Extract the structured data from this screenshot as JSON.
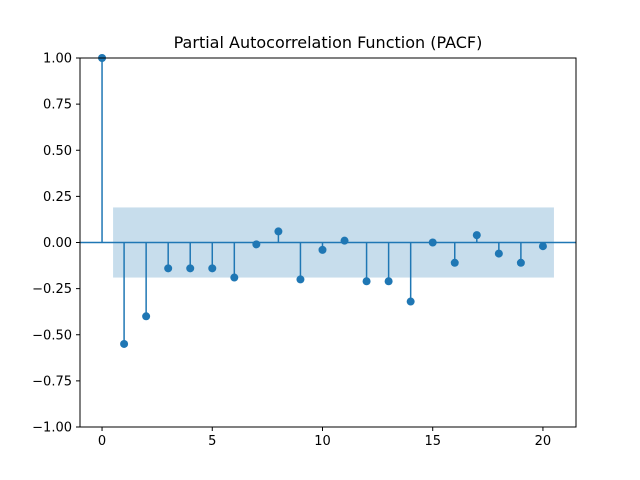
{
  "chart_data": {
    "type": "stem",
    "title": "Partial Autocorrelation Function (PACF)",
    "xlabel": "",
    "ylabel": "",
    "xlim": [
      -1,
      21.5
    ],
    "ylim": [
      -1.0,
      1.0
    ],
    "x_ticks": [
      "0",
      "5",
      "10",
      "15",
      "20"
    ],
    "y_ticks": [
      "−1.00",
      "−0.75",
      "−0.50",
      "−0.25",
      "0.00",
      "0.25",
      "0.50",
      "0.75",
      "1.00"
    ],
    "confidence_band": {
      "lower": -0.19,
      "upper": 0.19,
      "x_start": 0.5,
      "x_end": 20.5
    },
    "series": [
      {
        "lags": [
          0,
          1,
          2,
          3,
          4,
          5,
          6,
          7,
          8,
          9,
          10,
          11,
          12,
          13,
          14,
          15,
          16,
          17,
          18,
          19,
          20
        ],
        "values": [
          1.0,
          -0.55,
          -0.4,
          -0.14,
          -0.14,
          -0.14,
          -0.19,
          -0.01,
          0.06,
          -0.2,
          -0.04,
          0.01,
          -0.21,
          -0.21,
          -0.32,
          0.0,
          -0.11,
          0.04,
          -0.06,
          -0.11,
          -0.02
        ]
      }
    ],
    "colors": {
      "stem": "#1f77b4",
      "band": "#1f77b4",
      "band_opacity": 0.25,
      "zero_line": "#1f77b4"
    },
    "grid": false,
    "legend": false
  }
}
